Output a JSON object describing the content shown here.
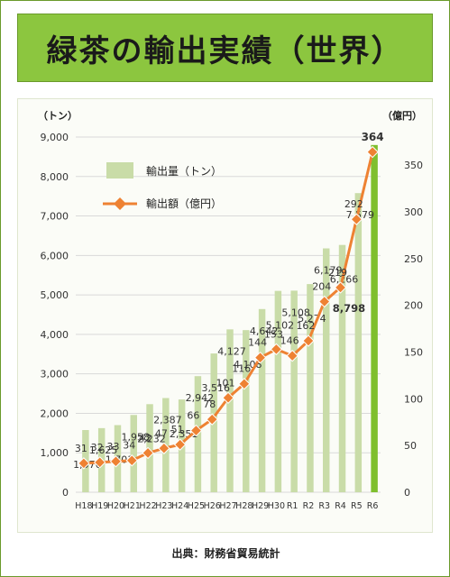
{
  "title": "緑茶の輸出実績（世界）",
  "source": "出典：財務省貿易統計",
  "colors": {
    "title_bg": "#8cc63f",
    "bar": "#c9dca8",
    "bar_highlight": "#7fbf2e",
    "line": "#ee8233",
    "grid": "#d9d9d9"
  },
  "chart_data": {
    "type": "bar+line",
    "categories": [
      "H18",
      "H19",
      "H20",
      "H21",
      "H22",
      "H23",
      "H24",
      "H25",
      "H26",
      "H27",
      "H28",
      "H29",
      "H30",
      "R1",
      "R2",
      "R3",
      "R4",
      "R5",
      "R6"
    ],
    "y_left_unit": "（トン）",
    "y_right_unit": "（億円）",
    "y_left_ticks": [
      "0",
      "1,000",
      "2,000",
      "3,000",
      "4,000",
      "5,000",
      "6,000",
      "7,000",
      "8,000",
      "9,000"
    ],
    "y_right_ticks": [
      "0",
      "50",
      "100",
      "150",
      "200",
      "250",
      "300",
      "350"
    ],
    "ylim_left": [
      0,
      9000
    ],
    "ylim_right": [
      0,
      380
    ],
    "legend_position": "top-left",
    "grid": true,
    "series": [
      {
        "name": "輸出量（トン）",
        "type": "bar",
        "axis": "left",
        "values": [
          1576,
          1625,
          1701,
          1958,
          2232,
          2387,
          2351,
          2942,
          3516,
          4127,
          4108,
          4642,
          5102,
          5108,
          5274,
          6179,
          6266,
          7579,
          8798
        ],
        "labels": [
          "1,576",
          "1,625",
          "1,701",
          "1,958",
          "2,232",
          "2,387",
          "2,351",
          "2,942",
          "3,516",
          "4,127",
          "4,108",
          "4,642",
          "5,102",
          "5,108",
          "5,274",
          "6,179",
          "6,266",
          "7,579",
          "8,798"
        ]
      },
      {
        "name": "輸出額（億円）",
        "type": "line",
        "axis": "right",
        "values": [
          31,
          32,
          33,
          34,
          42,
          47,
          51,
          66,
          78,
          101,
          116,
          144,
          153,
          146,
          162,
          204,
          219,
          292,
          364
        ],
        "labels": [
          "31",
          "32",
          "33",
          "34",
          "42",
          "47",
          "51",
          "66",
          "78",
          "101",
          "116",
          "144",
          "153",
          "146",
          "162",
          "204",
          "219",
          "292",
          "364"
        ]
      }
    ]
  }
}
